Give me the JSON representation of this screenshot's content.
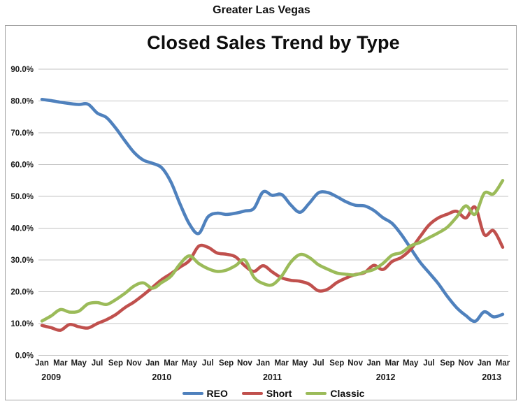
{
  "header": {
    "title": "Greater Las Vegas"
  },
  "chart": {
    "title": "Closed Sales Trend by Type"
  },
  "chart_data": {
    "type": "line",
    "title": "Closed Sales Trend by Type",
    "subtitle": "Greater Las Vegas",
    "x_start": "Jan 2009",
    "x_end": "Mar 2013",
    "points_per_month": 1,
    "tick_every_months": 2,
    "x_tick_labels": [
      "Jan",
      "Mar",
      "May",
      "Jul",
      "Sep",
      "Nov",
      "Jan",
      "Mar",
      "May",
      "Jul",
      "Sep",
      "Nov",
      "Jan",
      "Mar",
      "May",
      "Jul",
      "Sep",
      "Nov",
      "Jan",
      "Mar",
      "May",
      "Jul",
      "Sep",
      "Nov",
      "Jan",
      "Mar"
    ],
    "year_labels": [
      {
        "label": "2009",
        "month_index": 1.0
      },
      {
        "label": "2010",
        "month_index": 13.0
      },
      {
        "label": "2011",
        "month_index": 25.0
      },
      {
        "label": "2012",
        "month_index": 37.3
      },
      {
        "label": "2013",
        "month_index": 48.8
      }
    ],
    "y_tick_labels": [
      "0.0%",
      "10.0%",
      "20.0%",
      "30.0%",
      "40.0%",
      "50.0%",
      "60.0%",
      "70.0%",
      "80.0%",
      "90.0%"
    ],
    "ylim": [
      0,
      90
    ],
    "y_step": 10,
    "grid": "horizontal",
    "legend_position": "bottom",
    "series": [
      {
        "name": "REO",
        "color": "#4F81BD",
        "values": [
          80.5,
          80.1,
          79.6,
          79.2,
          78.9,
          79.0,
          76.2,
          74.8,
          71.5,
          67.5,
          63.8,
          61.4,
          60.4,
          59.0,
          54.5,
          47.5,
          41.3,
          38.3,
          43.5,
          44.7,
          44.3,
          44.7,
          45.4,
          46.2,
          51.4,
          50.3,
          50.6,
          47.3,
          45.0,
          47.8,
          51.1,
          51.2,
          49.9,
          48.3,
          47.2,
          47.0,
          45.6,
          43.3,
          41.5,
          38.0,
          33.7,
          29.4,
          26.0,
          22.6,
          18.5,
          15.0,
          12.5,
          10.7,
          13.7,
          12.1,
          12.9
        ]
      },
      {
        "name": "Short",
        "color": "#C0504D",
        "values": [
          9.4,
          8.7,
          7.9,
          9.7,
          9.0,
          8.6,
          10.0,
          11.2,
          12.8,
          15.0,
          16.8,
          19.0,
          21.4,
          23.8,
          25.7,
          27.8,
          29.8,
          34.3,
          34.0,
          32.2,
          31.8,
          31.0,
          28.2,
          26.4,
          28.2,
          26.2,
          24.4,
          23.6,
          23.3,
          22.4,
          20.3,
          20.8,
          22.9,
          24.3,
          25.4,
          26.0,
          28.3,
          27.0,
          29.5,
          30.8,
          33.3,
          37.2,
          41.0,
          43.2,
          44.4,
          45.3,
          43.2,
          46.6,
          38.0,
          39.2,
          34.0
        ]
      },
      {
        "name": "Classic",
        "color": "#9BBB59",
        "values": [
          10.8,
          12.4,
          14.4,
          13.6,
          13.9,
          16.2,
          16.6,
          16.0,
          17.5,
          19.5,
          21.8,
          22.8,
          21.1,
          22.9,
          24.9,
          28.8,
          31.3,
          28.9,
          27.3,
          26.4,
          26.8,
          28.2,
          30.0,
          24.6,
          22.6,
          22.2,
          24.9,
          29.3,
          31.7,
          30.8,
          28.5,
          27.1,
          25.9,
          25.5,
          25.3,
          26.2,
          27.0,
          28.9,
          31.5,
          32.3,
          34.4,
          35.5,
          37.0,
          38.5,
          40.3,
          43.5,
          47.0,
          44.4,
          51.0,
          50.8,
          55.0
        ]
      }
    ],
    "style": {
      "grid_color": "#c3c3c3",
      "axis_text_color": "#1a1a1a",
      "line_width": 4.5
    }
  }
}
